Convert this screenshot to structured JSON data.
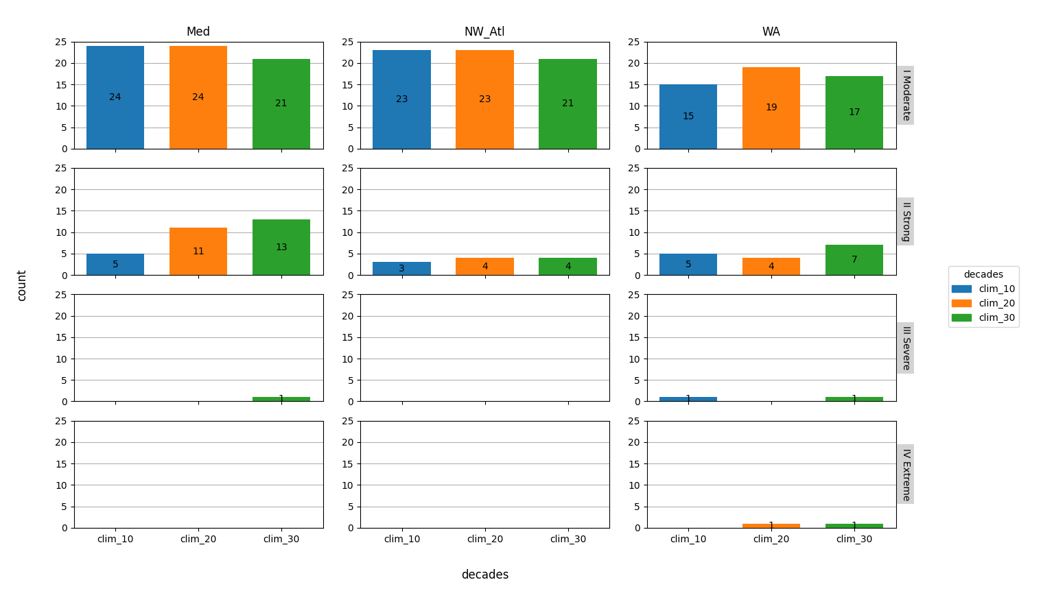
{
  "chart_data": [
    {
      "type": "bar",
      "title": "Med",
      "categories": [
        "clim_10",
        "clim_20",
        "clim_30"
      ],
      "values": [
        24,
        24,
        21
      ],
      "value_labels": [
        "24",
        "24",
        "21"
      ],
      "ylim": [
        0,
        25
      ],
      "yticks": [
        0,
        5,
        10,
        15,
        20,
        25
      ],
      "grid": true,
      "tick_labels": "y"
    },
    {
      "type": "bar",
      "title": "NW_Atl",
      "categories": [
        "clim_10",
        "clim_20",
        "clim_30"
      ],
      "values": [
        23,
        23,
        21
      ],
      "value_labels": [
        "23",
        "23",
        "21"
      ],
      "ylim": [
        0,
        25
      ],
      "yticks": [
        0,
        5,
        10,
        15,
        20,
        25
      ],
      "grid": true,
      "tick_labels": "y"
    },
    {
      "type": "bar",
      "title": "WA",
      "annotations": [
        "I Moderate"
      ],
      "categories": [
        "clim_10",
        "clim_20",
        "clim_30"
      ],
      "values": [
        15,
        19,
        17
      ],
      "value_labels": [
        "15",
        "19",
        "17"
      ],
      "ylim": [
        0,
        25
      ],
      "yticks": [
        0,
        5,
        10,
        15,
        20,
        25
      ],
      "grid": true,
      "tick_labels": "y"
    },
    {
      "type": "bar",
      "categories": [
        "clim_10",
        "clim_20",
        "clim_30"
      ],
      "values": [
        5,
        11,
        13
      ],
      "value_labels": [
        "5",
        "11",
        "13"
      ],
      "ylim": [
        0,
        25
      ],
      "yticks": [
        0,
        5,
        10,
        15,
        20,
        25
      ],
      "grid": true,
      "tick_labels": "y"
    },
    {
      "type": "bar",
      "categories": [
        "clim_10",
        "clim_20",
        "clim_30"
      ],
      "values": [
        3,
        4,
        4
      ],
      "value_labels": [
        "3",
        "4",
        "4"
      ],
      "ylim": [
        0,
        25
      ],
      "yticks": [
        0,
        5,
        10,
        15,
        20,
        25
      ],
      "grid": true,
      "tick_labels": "y"
    },
    {
      "type": "bar",
      "annotations": [
        "II Strong"
      ],
      "categories": [
        "clim_10",
        "clim_20",
        "clim_30"
      ],
      "values": [
        5,
        4,
        7
      ],
      "value_labels": [
        "5",
        "4",
        "7"
      ],
      "ylim": [
        0,
        25
      ],
      "yticks": [
        0,
        5,
        10,
        15,
        20,
        25
      ],
      "grid": true,
      "tick_labels": "y"
    },
    {
      "type": "bar",
      "categories": [
        "clim_10",
        "clim_20",
        "clim_30"
      ],
      "values": [
        0,
        0,
        1
      ],
      "value_labels": [
        null,
        null,
        "1"
      ],
      "ylim": [
        0,
        25
      ],
      "yticks": [
        0,
        5,
        10,
        15,
        20,
        25
      ],
      "grid": true,
      "tick_labels": "y"
    },
    {
      "type": "bar",
      "categories": [
        "clim_10",
        "clim_20",
        "clim_30"
      ],
      "values": [
        0,
        0,
        0
      ],
      "value_labels": [
        null,
        null,
        null
      ],
      "ylim": [
        0,
        25
      ],
      "yticks": [
        0,
        5,
        10,
        15,
        20,
        25
      ],
      "grid": true,
      "tick_labels": "y"
    },
    {
      "type": "bar",
      "annotations": [
        "III Severe"
      ],
      "categories": [
        "clim_10",
        "clim_20",
        "clim_30"
      ],
      "values": [
        1,
        0,
        1
      ],
      "value_labels": [
        "1",
        null,
        "1"
      ],
      "ylim": [
        0,
        25
      ],
      "yticks": [
        0,
        5,
        10,
        15,
        20,
        25
      ],
      "grid": true,
      "tick_labels": "y"
    },
    {
      "type": "bar",
      "categories": [
        "clim_10",
        "clim_20",
        "clim_30"
      ],
      "values": [
        0,
        0,
        0
      ],
      "value_labels": [
        null,
        null,
        null
      ],
      "ylim": [
        0,
        25
      ],
      "yticks": [
        0,
        5,
        10,
        15,
        20,
        25
      ],
      "grid": true
    },
    {
      "type": "bar",
      "categories": [
        "clim_10",
        "clim_20",
        "clim_30"
      ],
      "values": [
        0,
        0,
        0
      ],
      "value_labels": [
        null,
        null,
        null
      ],
      "ylim": [
        0,
        25
      ],
      "yticks": [
        0,
        5,
        10,
        15,
        20,
        25
      ],
      "grid": true
    },
    {
      "type": "bar",
      "annotations": [
        "IV Extreme"
      ],
      "categories": [
        "clim_10",
        "clim_20",
        "clim_30"
      ],
      "values": [
        0,
        1,
        1
      ],
      "value_labels": [
        null,
        "1",
        "1"
      ],
      "ylim": [
        0,
        25
      ],
      "yticks": [
        0,
        5,
        10,
        15,
        20,
        25
      ],
      "grid": true
    }
  ],
  "xlabel": "decades",
  "ylabel": "count",
  "legend": "center left",
  "legend_title": "decades",
  "legend_entries": [
    "clim_10",
    "clim_20",
    "clim_30"
  ]
}
